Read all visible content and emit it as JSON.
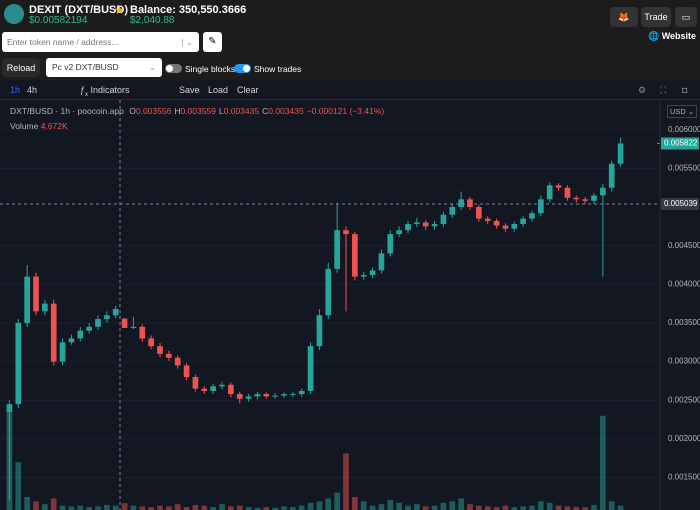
{
  "header": {
    "token": "DEXIT (DXT/BUSD)",
    "price": "$0.00582194",
    "balance": "Balance: 350,550.3666",
    "balance_usd": "$2,040.88",
    "trade": "Trade",
    "website": "Website",
    "search_placeholder": "Enter token name / address...",
    "reload": "Reload",
    "pair": "Pc v2 DXT/BUSD",
    "single_blocks": "Single blocks",
    "single_blocks_on": false,
    "show_trades": "Show trades",
    "show_trades_on": true
  },
  "toolbar": {
    "intervals": [
      "1h",
      "4h"
    ],
    "active_interval": 0,
    "indicators": "Indicators",
    "save": "Save",
    "load": "Load",
    "clear": "Clear",
    "currency": "USD"
  },
  "chart_data": {
    "type": "candlestick",
    "title": "DXT/BUSD · 1h · poocoin.app",
    "legend": [
      {
        "key": "O",
        "value": "0.003556"
      },
      {
        "key": "H",
        "value": "0.003559"
      },
      {
        "key": "L",
        "value": "0.003435"
      },
      {
        "key": "C",
        "value": "0.003435"
      }
    ],
    "change": "−0.000121 (−3.41%)",
    "volume_title": "Volume",
    "volume_value": "4.672K",
    "up_color": "#26a69a",
    "down_color": "#ef5350",
    "ylim": [
      0.00108,
      0.00632
    ],
    "yticks": [
      {
        "value": 0.0015,
        "label": "0.001500"
      },
      {
        "value": 0.002,
        "label": "0.002000"
      },
      {
        "value": 0.0025,
        "label": "0.002500"
      },
      {
        "value": 0.003,
        "label": "0.003000"
      },
      {
        "value": 0.0035,
        "label": "0.003500"
      },
      {
        "value": 0.004,
        "label": "0.004000"
      },
      {
        "value": 0.0045,
        "label": "0.004500"
      },
      {
        "value": 0.0055,
        "label": "0.005500"
      },
      {
        "value": 0.006,
        "label": "0.006000"
      }
    ],
    "grid": true,
    "last_price": {
      "value": 0.005822,
      "label": "0.005822"
    },
    "crosshair_price": {
      "value": 0.005039,
      "label": "0.005039"
    },
    "open": [
      0.00235,
      0.00245,
      0.0035,
      0.0041,
      0.00365,
      0.00375,
      0.003,
      0.00325,
      0.0033,
      0.0034,
      0.00345,
      0.00355,
      0.0036,
      0.003556,
      0.003435,
      0.00345,
      0.0033,
      0.0032,
      0.0031,
      0.00305,
      0.00295,
      0.0028,
      0.00265,
      0.00262,
      0.00268,
      0.0027,
      0.00258,
      0.00252,
      0.00255,
      0.00258,
      0.00255,
      0.00256,
      0.00258,
      0.00258,
      0.00262,
      0.0032,
      0.0036,
      0.0042,
      0.0047,
      0.00465,
      0.0041,
      0.00412,
      0.00418,
      0.0044,
      0.00465,
      0.0047,
      0.00478,
      0.0048,
      0.00475,
      0.00478,
      0.0049,
      0.005,
      0.0051,
      0.005,
      0.00485,
      0.00482,
      0.00476,
      0.00472,
      0.00478,
      0.00485,
      0.00492,
      0.0051,
      0.00528,
      0.00525,
      0.00512,
      0.0051,
      0.00508,
      0.00515,
      0.00525,
      0.00556
    ],
    "high": [
      0.0025,
      0.00355,
      0.00425,
      0.00415,
      0.0038,
      0.0038,
      0.0033,
      0.00335,
      0.00345,
      0.0035,
      0.0036,
      0.00365,
      0.00372,
      0.003559,
      0.00358,
      0.00348,
      0.00334,
      0.00324,
      0.00314,
      0.00308,
      0.00298,
      0.00283,
      0.00268,
      0.00271,
      0.00274,
      0.00273,
      0.00261,
      0.00258,
      0.00261,
      0.0026,
      0.00259,
      0.0026,
      0.00261,
      0.00265,
      0.00325,
      0.00368,
      0.00428,
      0.00505,
      0.00475,
      0.00468,
      0.00416,
      0.00422,
      0.00445,
      0.0047,
      0.00475,
      0.00482,
      0.00486,
      0.00483,
      0.00482,
      0.00494,
      0.00505,
      0.0052,
      0.00513,
      0.00503,
      0.00488,
      0.00485,
      0.00479,
      0.00481,
      0.00488,
      0.00495,
      0.00515,
      0.00532,
      0.00531,
      0.00528,
      0.00515,
      0.00513,
      0.00518,
      0.0053,
      0.0056,
      0.0059
    ],
    "low": [
      0.0012,
      0.0024,
      0.00345,
      0.0036,
      0.0036,
      0.00295,
      0.00296,
      0.00322,
      0.00326,
      0.00336,
      0.00341,
      0.0035,
      0.00356,
      0.003435,
      0.00342,
      0.00326,
      0.00316,
      0.00306,
      0.00301,
      0.00291,
      0.00276,
      0.00261,
      0.00258,
      0.00258,
      0.00264,
      0.00254,
      0.00246,
      0.00248,
      0.00251,
      0.00252,
      0.00252,
      0.00253,
      0.00254,
      0.00254,
      0.00258,
      0.00315,
      0.00355,
      0.00415,
      0.00365,
      0.00405,
      0.00406,
      0.00408,
      0.00414,
      0.00436,
      0.00461,
      0.00466,
      0.00474,
      0.0047,
      0.00471,
      0.00474,
      0.00486,
      0.00496,
      0.00496,
      0.00481,
      0.00478,
      0.00472,
      0.00468,
      0.00468,
      0.00474,
      0.00481,
      0.00488,
      0.00506,
      0.00521,
      0.00508,
      0.00506,
      0.00504,
      0.00504,
      0.0041,
      0.0052,
      0.00552
    ],
    "close": [
      0.00245,
      0.0035,
      0.0041,
      0.00365,
      0.00375,
      0.003,
      0.00325,
      0.0033,
      0.0034,
      0.00345,
      0.00355,
      0.0036,
      0.00368,
      0.003435,
      0.00345,
      0.0033,
      0.0032,
      0.0031,
      0.00305,
      0.00295,
      0.0028,
      0.00265,
      0.00262,
      0.00268,
      0.0027,
      0.00258,
      0.00252,
      0.00255,
      0.00258,
      0.00255,
      0.00256,
      0.00258,
      0.00258,
      0.00262,
      0.0032,
      0.0036,
      0.0042,
      0.0047,
      0.00465,
      0.0041,
      0.00412,
      0.00418,
      0.0044,
      0.00465,
      0.0047,
      0.00478,
      0.0048,
      0.00475,
      0.00478,
      0.0049,
      0.005,
      0.0051,
      0.005,
      0.00485,
      0.00482,
      0.00476,
      0.00472,
      0.00478,
      0.00485,
      0.00492,
      0.0051,
      0.00528,
      0.00525,
      0.00512,
      0.0051,
      0.00508,
      0.00515,
      0.00525,
      0.00556,
      0.005822
    ],
    "volume": [
      69000,
      33000,
      9000,
      6000,
      4000,
      8000,
      3000,
      2500,
      3000,
      2000,
      2500,
      3500,
      3000,
      4672,
      3000,
      2500,
      2000,
      3000,
      2500,
      4000,
      2000,
      3500,
      3000,
      2000,
      4000,
      2500,
      3000,
      2000,
      1500,
      2000,
      1500,
      2500,
      2000,
      3000,
      5000,
      6000,
      8000,
      12000,
      39000,
      9000,
      6000,
      3000,
      4000,
      7000,
      5000,
      3000,
      4000,
      2500,
      3000,
      5000,
      6000,
      8000,
      4000,
      3000,
      2500,
      2000,
      3000,
      2000,
      2500,
      3000,
      6000,
      5000,
      3000,
      2500,
      2000,
      2000,
      3500,
      65000,
      6000,
      3000
    ]
  }
}
